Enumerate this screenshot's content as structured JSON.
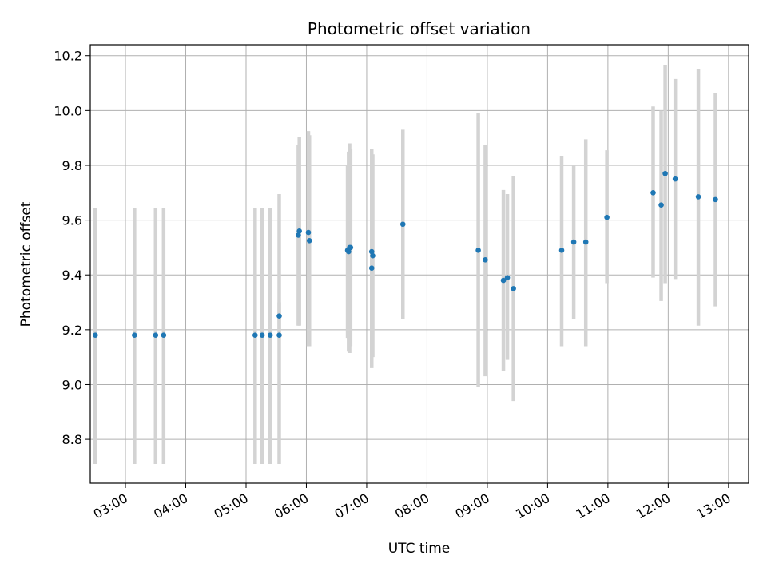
{
  "chart_data": {
    "type": "scatter",
    "title": "Photometric offset variation",
    "xlabel": "UTC time",
    "ylabel": "Photometric offset",
    "x_axis": "time (HH:MM, UTC)",
    "xlim": [
      "02:25",
      "13:20"
    ],
    "ylim": [
      8.64,
      10.24
    ],
    "x_ticks": [
      "03:00",
      "04:00",
      "05:00",
      "06:00",
      "07:00",
      "08:00",
      "09:00",
      "10:00",
      "11:00",
      "12:00",
      "13:00"
    ],
    "y_ticks": [
      8.8,
      9.0,
      9.2,
      9.4,
      9.6,
      9.8,
      10.0,
      10.2
    ],
    "grid": true,
    "colors": {
      "points": "#1f77b4",
      "errorbars": "#d3d3d3",
      "grid": "#b0b0b0"
    },
    "series": [
      {
        "points": [
          {
            "x": "02:30",
            "y": 9.18,
            "ylow": 8.71,
            "yhigh": 9.645
          },
          {
            "x": "03:09",
            "y": 9.18,
            "ylow": 8.71,
            "yhigh": 9.645
          },
          {
            "x": "03:30",
            "y": 9.18,
            "ylow": 8.71,
            "yhigh": 9.645
          },
          {
            "x": "03:38",
            "y": 9.18,
            "ylow": 8.71,
            "yhigh": 9.645
          },
          {
            "x": "05:09",
            "y": 9.18,
            "ylow": 8.71,
            "yhigh": 9.645
          },
          {
            "x": "05:16",
            "y": 9.18,
            "ylow": 8.71,
            "yhigh": 9.645
          },
          {
            "x": "05:24",
            "y": 9.18,
            "ylow": 8.71,
            "yhigh": 9.645
          },
          {
            "x": "05:33",
            "y": 9.18,
            "ylow": 8.71,
            "yhigh": 9.695
          },
          {
            "x": "05:33",
            "y": 9.25,
            "ylow": 9.2,
            "yhigh": 9.3
          },
          {
            "x": "05:52",
            "y": 9.545,
            "ylow": 9.215,
            "yhigh": 9.875
          },
          {
            "x": "05:53",
            "y": 9.56,
            "ylow": 9.215,
            "yhigh": 9.905
          },
          {
            "x": "06:02",
            "y": 9.555,
            "ylow": 9.14,
            "yhigh": 9.925
          },
          {
            "x": "06:03",
            "y": 9.525,
            "ylow": 9.14,
            "yhigh": 9.91
          },
          {
            "x": "06:41",
            "y": 9.49,
            "ylow": 9.17,
            "yhigh": 9.8
          },
          {
            "x": "06:42",
            "y": 9.485,
            "ylow": 9.12,
            "yhigh": 9.85
          },
          {
            "x": "06:43",
            "y": 9.5,
            "ylow": 9.115,
            "yhigh": 9.88
          },
          {
            "x": "06:44",
            "y": 9.5,
            "ylow": 9.14,
            "yhigh": 9.86
          },
          {
            "x": "07:05",
            "y": 9.425,
            "ylow": 9.06,
            "yhigh": 9.79
          },
          {
            "x": "07:05",
            "y": 9.485,
            "ylow": 9.11,
            "yhigh": 9.86
          },
          {
            "x": "07:06",
            "y": 9.47,
            "ylow": 9.1,
            "yhigh": 9.84
          },
          {
            "x": "07:36",
            "y": 9.585,
            "ylow": 9.24,
            "yhigh": 9.93
          },
          {
            "x": "08:51",
            "y": 9.49,
            "ylow": 8.99,
            "yhigh": 9.99
          },
          {
            "x": "08:58",
            "y": 9.455,
            "ylow": 9.03,
            "yhigh": 9.875
          },
          {
            "x": "09:16",
            "y": 9.38,
            "ylow": 9.05,
            "yhigh": 9.71
          },
          {
            "x": "09:20",
            "y": 9.39,
            "ylow": 9.09,
            "yhigh": 9.695
          },
          {
            "x": "09:26",
            "y": 9.35,
            "ylow": 8.94,
            "yhigh": 9.76
          },
          {
            "x": "10:14",
            "y": 9.49,
            "ylow": 9.14,
            "yhigh": 9.835
          },
          {
            "x": "10:26",
            "y": 9.52,
            "ylow": 9.24,
            "yhigh": 9.8
          },
          {
            "x": "10:38",
            "y": 9.52,
            "ylow": 9.14,
            "yhigh": 9.895
          },
          {
            "x": "10:59",
            "y": 9.61,
            "ylow": 9.37,
            "yhigh": 9.855
          },
          {
            "x": "11:45",
            "y": 9.7,
            "ylow": 9.39,
            "yhigh": 10.015
          },
          {
            "x": "11:53",
            "y": 9.655,
            "ylow": 9.305,
            "yhigh": 10.0
          },
          {
            "x": "11:57",
            "y": 9.77,
            "ylow": 9.37,
            "yhigh": 10.165
          },
          {
            "x": "12:07",
            "y": 9.75,
            "ylow": 9.385,
            "yhigh": 10.115
          },
          {
            "x": "12:30",
            "y": 9.685,
            "ylow": 9.215,
            "yhigh": 10.15
          },
          {
            "x": "12:47",
            "y": 9.675,
            "ylow": 9.285,
            "yhigh": 10.065
          }
        ]
      }
    ]
  }
}
